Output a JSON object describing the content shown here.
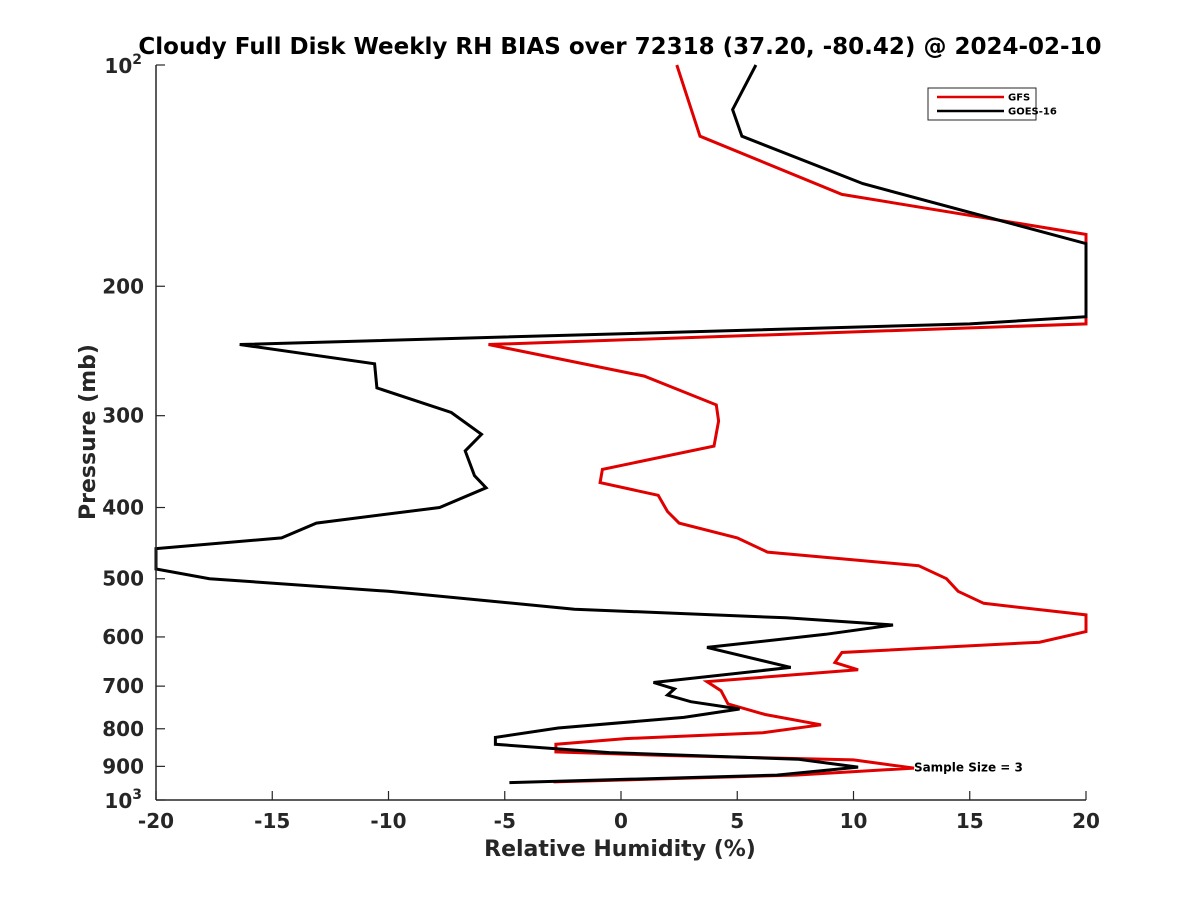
{
  "chart_data": {
    "type": "line",
    "title": "Cloudy Full Disk Weekly RH BIAS over 72318 (37.20, -80.42) @ 2024-02-10",
    "xlabel": "Relative Humidity (%)",
    "ylabel": "Pressure (mb)",
    "xlim": [
      -20,
      20
    ],
    "ylim": [
      100,
      1000
    ],
    "yscale": "log",
    "y_reversed": true,
    "x_ticks": [
      -20,
      -15,
      -10,
      -5,
      0,
      5,
      10,
      15,
      20
    ],
    "x_tick_labels": [
      "-20",
      "-15",
      "-10",
      "-5",
      "0",
      "5",
      "10",
      "15",
      "20"
    ],
    "y_ticks": [
      100,
      200,
      300,
      400,
      500,
      600,
      700,
      800,
      900,
      1000
    ],
    "y_tick_labels": [
      "200",
      "300",
      "400",
      "500",
      "600",
      "700",
      "800",
      "900"
    ],
    "y_decade_labels": [
      {
        "base": "10",
        "exp": "2"
      },
      {
        "base": "10",
        "exp": "3"
      }
    ],
    "grid": false,
    "legend_position": "top-right",
    "series": [
      {
        "name": "GFS",
        "color": "#e00000",
        "points": [
          [
            2.4,
            100
          ],
          [
            3.4,
            125
          ],
          [
            9.5,
            150
          ],
          [
            20,
            170
          ],
          [
            20,
            225
          ],
          [
            -5.7,
            240
          ],
          [
            1.0,
            265
          ],
          [
            4.1,
            290
          ],
          [
            4.2,
            305
          ],
          [
            4.0,
            330
          ],
          [
            -0.8,
            355
          ],
          [
            -0.9,
            370
          ],
          [
            1.6,
            385
          ],
          [
            2.0,
            405
          ],
          [
            2.5,
            420
          ],
          [
            5.0,
            440
          ],
          [
            6.3,
            460
          ],
          [
            12.8,
            480
          ],
          [
            14.0,
            500
          ],
          [
            14.5,
            520
          ],
          [
            15.6,
            540
          ],
          [
            20,
            560
          ],
          [
            20,
            590
          ],
          [
            18.0,
            610
          ],
          [
            9.5,
            630
          ],
          [
            9.2,
            650
          ],
          [
            10.2,
            665
          ],
          [
            3.7,
            690
          ],
          [
            4.3,
            710
          ],
          [
            4.6,
            740
          ],
          [
            6.2,
            765
          ],
          [
            8.6,
            790
          ],
          [
            6.1,
            810
          ],
          [
            0.2,
            825
          ],
          [
            -2.8,
            840
          ],
          [
            -2.8,
            860
          ],
          [
            2.0,
            870
          ],
          [
            10.0,
            882
          ],
          [
            12.6,
            905
          ],
          [
            7.5,
            925
          ],
          [
            -2.9,
            945
          ]
        ]
      },
      {
        "name": "GOES-16",
        "color": "#000000",
        "points": [
          [
            5.8,
            100
          ],
          [
            4.8,
            115
          ],
          [
            5.2,
            125
          ],
          [
            10.4,
            145
          ],
          [
            20,
            175
          ],
          [
            20,
            220
          ],
          [
            15.0,
            225
          ],
          [
            -16.4,
            240
          ],
          [
            -10.6,
            255
          ],
          [
            -10.5,
            275
          ],
          [
            -7.3,
            297
          ],
          [
            -6.0,
            318
          ],
          [
            -6.7,
            335
          ],
          [
            -6.3,
            362
          ],
          [
            -5.8,
            376
          ],
          [
            -7.8,
            400
          ],
          [
            -13.1,
            420
          ],
          [
            -14.6,
            440
          ],
          [
            -20,
            455
          ],
          [
            -20,
            485
          ],
          [
            -17.7,
            500
          ],
          [
            -10.0,
            520
          ],
          [
            -2.0,
            550
          ],
          [
            7.1,
            565
          ],
          [
            11.7,
            578
          ],
          [
            8.8,
            595
          ],
          [
            3.7,
            620
          ],
          [
            7.3,
            660
          ],
          [
            1.4,
            692
          ],
          [
            2.3,
            706
          ],
          [
            2.0,
            720
          ],
          [
            3.0,
            735
          ],
          [
            5.1,
            752
          ],
          [
            2.7,
            772
          ],
          [
            -2.7,
            798
          ],
          [
            -5.4,
            822
          ],
          [
            -5.4,
            840
          ],
          [
            -0.5,
            862
          ],
          [
            7.6,
            880
          ],
          [
            10.2,
            902
          ],
          [
            6.7,
            925
          ],
          [
            -4.8,
            947
          ]
        ]
      }
    ],
    "legend": [
      "GFS",
      "GOES-16"
    ],
    "annotations": [
      {
        "text": "Sample Size = 3",
        "x": 12.6,
        "y": 900
      }
    ]
  }
}
